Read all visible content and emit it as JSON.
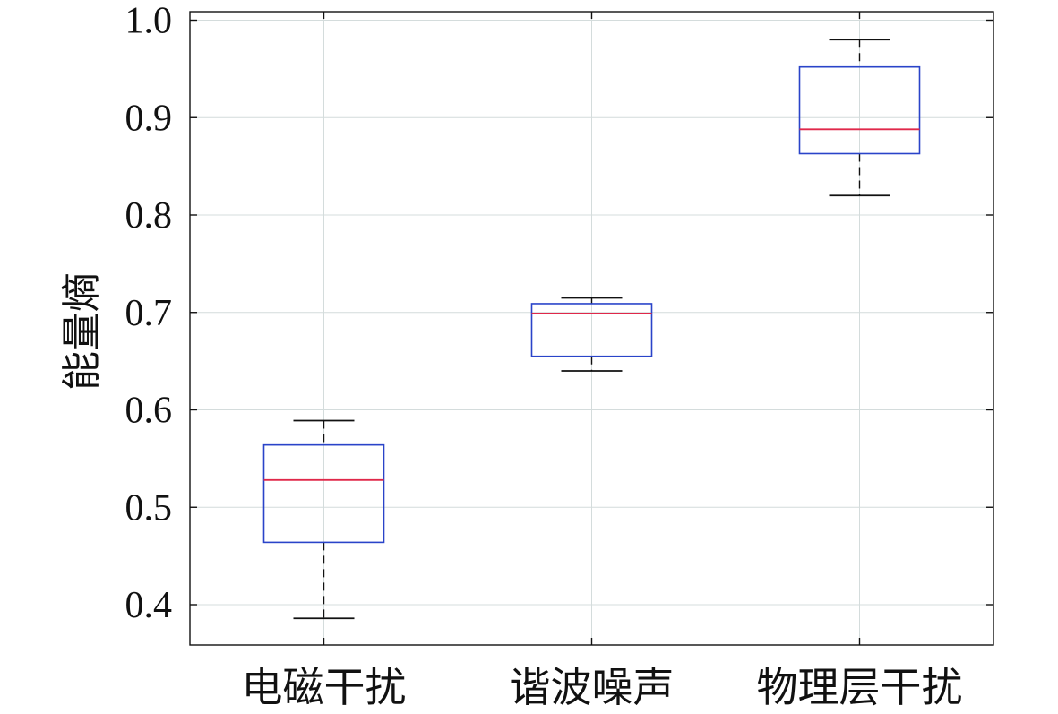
{
  "chart_data": {
    "type": "box",
    "title": "",
    "xlabel": "",
    "ylabel": "能量熵",
    "ylim": [
      0.36,
      1.01
    ],
    "yticks": [
      "0.4",
      "0.5",
      "0.6",
      "0.7",
      "0.8",
      "0.9",
      "1.0"
    ],
    "grid": true,
    "categories": [
      "电磁干扰",
      "谐波噪声",
      "物理层干扰"
    ],
    "boxes": [
      {
        "category": "电磁干扰",
        "whisker_low": 0.386,
        "q1": 0.464,
        "median": 0.528,
        "q3": 0.564,
        "whisker_high": 0.589
      },
      {
        "category": "谐波噪声",
        "whisker_low": 0.64,
        "q1": 0.655,
        "median": 0.699,
        "q3": 0.709,
        "whisker_high": 0.715
      },
      {
        "category": "物理层干扰",
        "whisker_low": 0.82,
        "q1": 0.863,
        "median": 0.888,
        "q3": 0.952,
        "whisker_high": 0.98
      }
    ],
    "colors": {
      "box": "#2a44c9",
      "median": "#e0284a",
      "whisker": "#111111",
      "grid": "#d4dcdc",
      "axis": "#111111"
    }
  }
}
